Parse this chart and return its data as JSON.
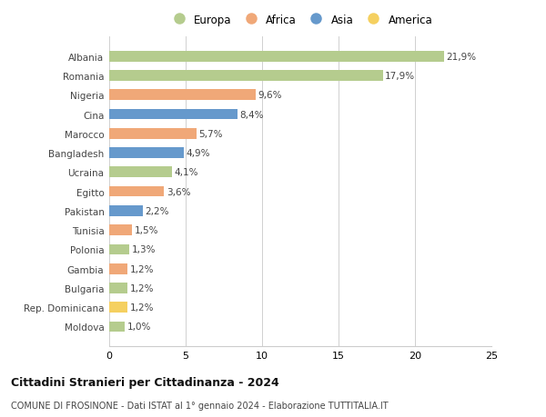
{
  "countries": [
    "Albania",
    "Romania",
    "Nigeria",
    "Cina",
    "Marocco",
    "Bangladesh",
    "Ucraina",
    "Egitto",
    "Pakistan",
    "Tunisia",
    "Polonia",
    "Gambia",
    "Bulgaria",
    "Rep. Dominicana",
    "Moldova"
  ],
  "values": [
    21.9,
    17.9,
    9.6,
    8.4,
    5.7,
    4.9,
    4.1,
    3.6,
    2.2,
    1.5,
    1.3,
    1.2,
    1.2,
    1.2,
    1.0
  ],
  "labels": [
    "21,9%",
    "17,9%",
    "9,6%",
    "8,4%",
    "5,7%",
    "4,9%",
    "4,1%",
    "3,6%",
    "2,2%",
    "1,5%",
    "1,3%",
    "1,2%",
    "1,2%",
    "1,2%",
    "1,0%"
  ],
  "continents": [
    "Europa",
    "Europa",
    "Africa",
    "Asia",
    "Africa",
    "Asia",
    "Europa",
    "Africa",
    "Asia",
    "Africa",
    "Europa",
    "Africa",
    "Europa",
    "America",
    "Europa"
  ],
  "colors": {
    "Europa": "#b5cc8e",
    "Africa": "#f0a878",
    "Asia": "#6699cc",
    "America": "#f5d060"
  },
  "legend_order": [
    "Europa",
    "Africa",
    "Asia",
    "America"
  ],
  "title": "Cittadini Stranieri per Cittadinanza - 2024",
  "subtitle": "COMUNE DI FROSINONE - Dati ISTAT al 1° gennaio 2024 - Elaborazione TUTTITALIA.IT",
  "xlim": [
    0,
    25
  ],
  "xticks": [
    0,
    5,
    10,
    15,
    20,
    25
  ],
  "background_color": "#ffffff",
  "grid_color": "#d0d0d0"
}
